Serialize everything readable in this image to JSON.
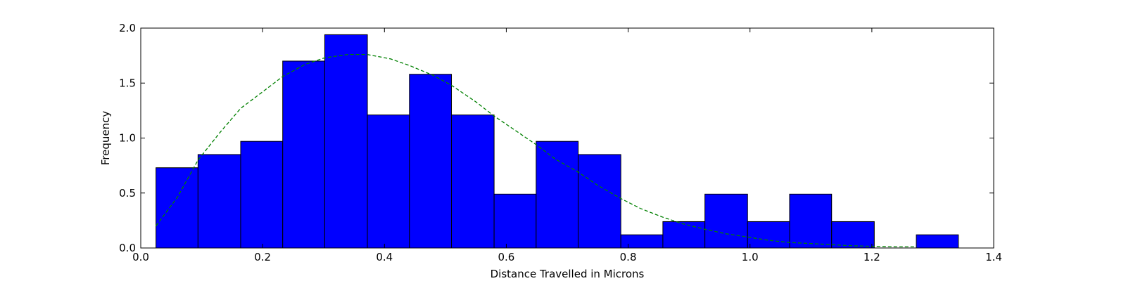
{
  "chart_data": {
    "type": "bar",
    "xlabel": "Distance Travelled in Microns",
    "ylabel": "Frequency",
    "xlim": [
      0.0,
      1.4
    ],
    "ylim": [
      0.0,
      2.0
    ],
    "xticks": [
      0.0,
      0.2,
      0.4,
      0.6,
      0.8,
      1.0,
      1.2,
      1.4
    ],
    "xtick_labels": [
      "0.0",
      "0.2",
      "0.4",
      "0.6",
      "0.8",
      "1.0",
      "1.2",
      "1.4"
    ],
    "yticks": [
      0.0,
      0.5,
      1.0,
      1.5,
      2.0
    ],
    "ytick_labels": [
      "0.0",
      "0.5",
      "1.0",
      "1.5",
      "2.0"
    ],
    "bar_color": "#0000ff",
    "curve_color": "#008000",
    "bins": [
      {
        "x0": 0.025,
        "x1": 0.094,
        "value": 0.73
      },
      {
        "x0": 0.094,
        "x1": 0.164,
        "value": 0.85
      },
      {
        "x0": 0.164,
        "x1": 0.233,
        "value": 0.97
      },
      {
        "x0": 0.233,
        "x1": 0.302,
        "value": 1.7
      },
      {
        "x0": 0.302,
        "x1": 0.372,
        "value": 1.94
      },
      {
        "x0": 0.372,
        "x1": 0.441,
        "value": 1.21
      },
      {
        "x0": 0.441,
        "x1": 0.51,
        "value": 1.58
      },
      {
        "x0": 0.51,
        "x1": 0.58,
        "value": 1.21
      },
      {
        "x0": 0.58,
        "x1": 0.649,
        "value": 0.49
      },
      {
        "x0": 0.649,
        "x1": 0.718,
        "value": 0.97
      },
      {
        "x0": 0.718,
        "x1": 0.788,
        "value": 0.85
      },
      {
        "x0": 0.788,
        "x1": 0.857,
        "value": 0.12
      },
      {
        "x0": 0.857,
        "x1": 0.926,
        "value": 0.24
      },
      {
        "x0": 0.926,
        "x1": 0.996,
        "value": 0.49
      },
      {
        "x0": 0.996,
        "x1": 1.065,
        "value": 0.24
      },
      {
        "x0": 1.065,
        "x1": 1.134,
        "value": 0.49
      },
      {
        "x0": 1.134,
        "x1": 1.204,
        "value": 0.24
      },
      {
        "x0": 1.204,
        "x1": 1.273,
        "value": 0.0
      },
      {
        "x0": 1.273,
        "x1": 1.342,
        "value": 0.12
      }
    ],
    "curve": {
      "x": [
        0.025,
        0.06,
        0.094,
        0.13,
        0.164,
        0.2,
        0.233,
        0.27,
        0.302,
        0.34,
        0.372,
        0.41,
        0.441,
        0.48,
        0.51,
        0.55,
        0.58,
        0.62,
        0.649,
        0.68,
        0.718,
        0.75,
        0.788,
        0.82,
        0.857,
        0.89,
        0.926,
        0.96,
        0.996,
        1.03,
        1.065,
        1.1,
        1.134,
        1.17,
        1.204,
        1.24,
        1.273
      ],
      "y": [
        0.2,
        0.46,
        0.8,
        1.05,
        1.27,
        1.42,
        1.56,
        1.67,
        1.73,
        1.76,
        1.76,
        1.72,
        1.66,
        1.57,
        1.48,
        1.33,
        1.2,
        1.05,
        0.94,
        0.81,
        0.69,
        0.57,
        0.45,
        0.36,
        0.28,
        0.22,
        0.17,
        0.13,
        0.1,
        0.07,
        0.05,
        0.04,
        0.03,
        0.02,
        0.015,
        0.01,
        0.01
      ]
    }
  }
}
